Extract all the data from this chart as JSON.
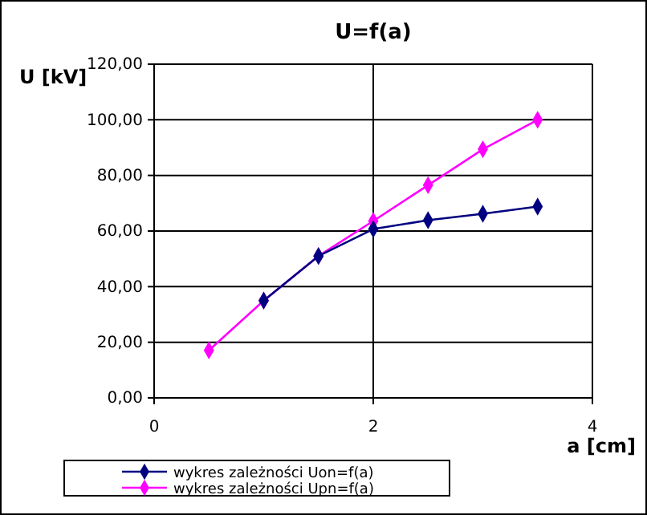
{
  "chart_data": {
    "type": "line",
    "title": "U=f(a)",
    "xlabel": "a [cm]",
    "ylabel": "U [kV]",
    "xlim": [
      0,
      4
    ],
    "xticks": [
      0,
      2,
      4
    ],
    "ylim": [
      0,
      120
    ],
    "yticks": [
      {
        "value": 0,
        "label": "0,00"
      },
      {
        "value": 20,
        "label": "20,00"
      },
      {
        "value": 40,
        "label": "40,00"
      },
      {
        "value": 60,
        "label": "60,00"
      },
      {
        "value": 80,
        "label": "80,00"
      },
      {
        "value": 100,
        "label": "100,00"
      },
      {
        "value": 120,
        "label": "120,00"
      }
    ],
    "grid": true,
    "legend": "bottom",
    "marker": "diamond",
    "line_style": "solid",
    "series": [
      {
        "name": "wykres zależności Uon=f(a)",
        "color": "#000080",
        "x": [
          1,
          1.5,
          2,
          2.5,
          3,
          3.5
        ],
        "values": [
          35,
          51,
          60.7,
          63.9,
          66.2,
          68.8
        ]
      },
      {
        "name": "wykres zależności Upn=f(a)",
        "color": "#ff00ff",
        "x": [
          0.5,
          1,
          1.5,
          2,
          2.5,
          3,
          3.5
        ],
        "values": [
          17.1,
          35,
          51,
          63.6,
          76.5,
          89.4,
          100
        ]
      }
    ]
  }
}
